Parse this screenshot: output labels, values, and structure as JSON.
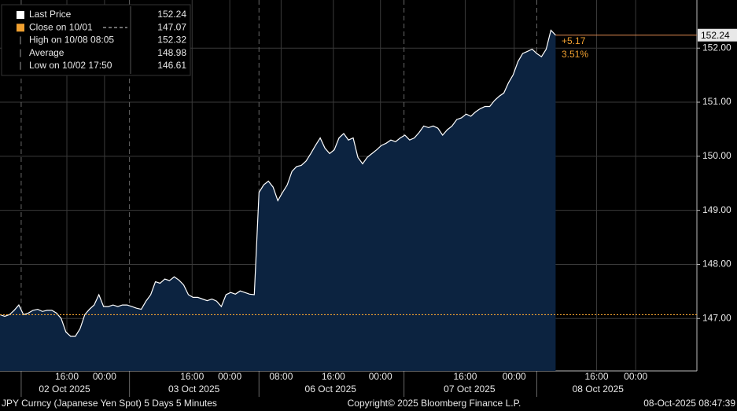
{
  "chart_data": {
    "type": "area",
    "series": [
      {
        "name": "Last Price",
        "color": "#ffffff",
        "fill": "#0c2340",
        "x": [
          0,
          1,
          2,
          3,
          4,
          5,
          6,
          7,
          8,
          9,
          10,
          11,
          12,
          13,
          14,
          15,
          16,
          17,
          18,
          19,
          20,
          21,
          22,
          23,
          24,
          25,
          26,
          27,
          28,
          29,
          30,
          31,
          32,
          33,
          34,
          35,
          36,
          37,
          38,
          39,
          40,
          41,
          42,
          43,
          44,
          45,
          46,
          47,
          48,
          49,
          50,
          51,
          52,
          53,
          54,
          55,
          56,
          57,
          58,
          59,
          60,
          61,
          62,
          63,
          64,
          65,
          66,
          67,
          68,
          69,
          70,
          71,
          72,
          73,
          74,
          75,
          76,
          77,
          78,
          79,
          80,
          81,
          82,
          83,
          84,
          85,
          86,
          87,
          88,
          89,
          90,
          91,
          92,
          93,
          94,
          95,
          96,
          97,
          98,
          99,
          100,
          101,
          102,
          103,
          104,
          105,
          106,
          107,
          108,
          109,
          110,
          111,
          112,
          113,
          114,
          115,
          116,
          117,
          118
        ],
        "values": [
          147.07,
          147.04,
          147.07,
          147.15,
          147.25,
          147.07,
          147.1,
          147.15,
          147.17,
          147.13,
          147.15,
          147.15,
          147.1,
          147.0,
          146.75,
          146.67,
          146.67,
          146.81,
          147.07,
          147.17,
          147.25,
          147.44,
          147.22,
          147.22,
          147.25,
          147.22,
          147.25,
          147.25,
          147.22,
          147.19,
          147.17,
          147.32,
          147.44,
          147.68,
          147.65,
          147.73,
          147.7,
          147.77,
          147.71,
          147.62,
          147.44,
          147.39,
          147.39,
          147.36,
          147.33,
          147.36,
          147.32,
          147.22,
          147.44,
          147.48,
          147.45,
          147.51,
          147.48,
          147.45,
          147.44,
          149.33,
          149.47,
          149.54,
          149.43,
          149.18,
          149.33,
          149.47,
          149.72,
          149.81,
          149.83,
          149.91,
          150.05,
          150.2,
          150.34,
          150.15,
          150.05,
          150.12,
          150.34,
          150.42,
          150.3,
          150.34,
          149.98,
          149.86,
          149.98,
          150.05,
          150.12,
          150.2,
          150.24,
          150.3,
          150.27,
          150.34,
          150.39,
          150.3,
          150.34,
          150.44,
          150.56,
          150.53,
          150.56,
          150.52,
          150.39,
          150.49,
          150.56,
          150.68,
          150.71,
          150.78,
          150.74,
          150.82,
          150.88,
          150.92,
          150.92,
          151.03,
          151.11,
          151.17,
          151.36,
          151.51,
          151.75,
          151.9,
          151.94,
          151.98,
          151.9,
          151.84,
          151.98,
          152.33,
          152.24
        ]
      }
    ],
    "xlim": [
      0,
      148
    ],
    "ylim": [
      146.03,
      152.89
    ],
    "yticks": [
      {
        "value": 147,
        "label": "147.00"
      },
      {
        "value": 148,
        "label": "148.00"
      },
      {
        "value": 149,
        "label": "149.00"
      },
      {
        "value": 150,
        "label": "150.00"
      },
      {
        "value": 151,
        "label": "151.00"
      },
      {
        "value": 152,
        "label": "152.00"
      }
    ],
    "xticks": [
      {
        "value": 14.2,
        "label": "16:00"
      },
      {
        "value": 22.2,
        "label": "00:00"
      },
      {
        "value": 40.8,
        "label": "16:00"
      },
      {
        "value": 48.8,
        "label": "00:00"
      },
      {
        "value": 59.7,
        "label": "08:00"
      },
      {
        "value": 70.8,
        "label": "16:00"
      },
      {
        "value": 80.8,
        "label": "00:00"
      },
      {
        "value": 98.8,
        "label": "16:00"
      },
      {
        "value": 109.2,
        "label": "00:00"
      },
      {
        "value": 126.7,
        "label": "16:00"
      },
      {
        "value": 135,
        "label": "00:00"
      }
    ],
    "day_labels": [
      {
        "value": 13.7,
        "label": "02 Oct 2025"
      },
      {
        "value": 41.2,
        "label": "03 Oct 2025"
      },
      {
        "value": 70.2,
        "label": "06 Oct 2025"
      },
      {
        "value": 99.7,
        "label": "07 Oct 2025"
      },
      {
        "value": 127,
        "label": "08 Oct 2025"
      }
    ],
    "session_breaks": [
      4.5,
      27.5,
      55,
      85.8,
      114
    ],
    "grid": true,
    "close_line": {
      "value": 147.07,
      "color": "#f0a030"
    },
    "last_price": {
      "value": 152.24,
      "label": "152.24"
    },
    "change": {
      "value": 5.17,
      "label": "+5.17",
      "color": "#f0a030"
    },
    "change_pct": {
      "value": 3.51,
      "label": "3.51%"
    },
    "legend": [
      {
        "label": "Last Price",
        "value": 152.24,
        "color": "#ffffff"
      },
      {
        "label": "Close on 10/01",
        "value": 147.07,
        "color": "#f0a030"
      },
      {
        "label": "High on 10/08 08:05",
        "value": 152.32
      },
      {
        "label": "Average",
        "value": 148.98
      },
      {
        "label": "Low on 10/02 17:50",
        "value": 146.61
      }
    ],
    "footer": {
      "left": "JPY Curncy (Japanese Yen Spot) 5 Days 5 Minutes",
      "center": "Copyright© 2025 Bloomberg Finance L.P.",
      "right": "08-Oct-2025 08:47:39"
    }
  }
}
